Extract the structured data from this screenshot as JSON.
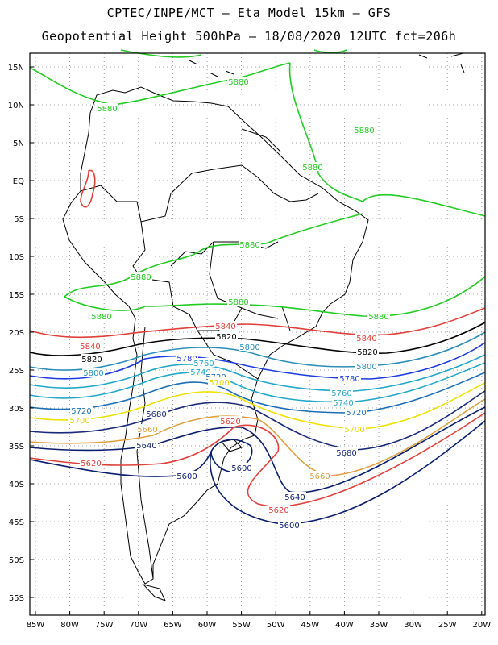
{
  "header": {
    "line1": "CPTEC/INPE/MCT –  Eta Model 15km – GFS",
    "line2": "Geopotential Height 500hPa – 18/08/2020 12UTC fct=206h"
  },
  "colors": {
    "c5880": "#22cc22",
    "c5840": "#e0403a",
    "c5820": "#000000",
    "c5800": "#2a8eb8",
    "c5780": "#1c3cde",
    "c5760": "#23a8c8",
    "c5740": "#23a8c8",
    "c5720": "#1a6fb6",
    "c5700": "#f0e000",
    "c5680": "#1a2a7a",
    "c5660": "#e0a040",
    "c5640": "#0a1e6e",
    "c5620": "#e0403a",
    "c5600": "#0a1e6e",
    "border": "#000000"
  },
  "axes": {
    "lat_labels": [
      "15N",
      "10N",
      "5N",
      "EQ",
      "5S",
      "10S",
      "15S",
      "20S",
      "25S",
      "30S",
      "35S",
      "40S",
      "45S",
      "50S",
      "55S"
    ],
    "lon_labels": [
      "85W",
      "80W",
      "75W",
      "70W",
      "65W",
      "60W",
      "55W",
      "50W",
      "45W",
      "40W",
      "35W",
      "30W",
      "25W",
      "20W"
    ]
  },
  "contour_labels": [
    {
      "text": "5880",
      "color": "#22cc22"
    },
    {
      "text": "5880",
      "color": "#22cc22"
    },
    {
      "text": "5880",
      "color": "#22cc22"
    },
    {
      "text": "5880",
      "color": "#22cc22"
    },
    {
      "text": "5880",
      "color": "#22cc22"
    },
    {
      "text": "5880",
      "color": "#22cc22"
    },
    {
      "text": "5880",
      "color": "#22cc22"
    },
    {
      "text": "5880",
      "color": "#22cc22"
    },
    {
      "text": "5880",
      "color": "#22cc22"
    },
    {
      "text": "5880",
      "color": "#22cc22"
    },
    {
      "text": "5840",
      "color": "#e0403a"
    },
    {
      "text": "5840",
      "color": "#e0403a"
    },
    {
      "text": "5840",
      "color": "#e0403a"
    },
    {
      "text": "5820",
      "color": "#000000"
    },
    {
      "text": "5820",
      "color": "#000000"
    },
    {
      "text": "5820",
      "color": "#000000"
    },
    {
      "text": "5800",
      "color": "#2a8eb8"
    },
    {
      "text": "5800",
      "color": "#2a8eb8"
    },
    {
      "text": "5800",
      "color": "#2a8eb8"
    },
    {
      "text": "5780",
      "color": "#1c3cde"
    },
    {
      "text": "5780",
      "color": "#1c3cde"
    },
    {
      "text": "5760",
      "color": "#23a8c8"
    },
    {
      "text": "5760",
      "color": "#23a8c8"
    },
    {
      "text": "5740",
      "color": "#23a8c8"
    },
    {
      "text": "5740",
      "color": "#23a8c8"
    },
    {
      "text": "5720",
      "color": "#1a6fb6"
    },
    {
      "text": "5720",
      "color": "#1a6fb6"
    },
    {
      "text": "5720",
      "color": "#1a6fb6"
    },
    {
      "text": "5700",
      "color": "#e8d800"
    },
    {
      "text": "5700",
      "color": "#e8d800"
    },
    {
      "text": "5700",
      "color": "#e8d800"
    },
    {
      "text": "5680",
      "color": "#1a2a7a"
    },
    {
      "text": "5680",
      "color": "#1a2a7a"
    },
    {
      "text": "5660",
      "color": "#e0a040"
    },
    {
      "text": "5660",
      "color": "#e0a040"
    },
    {
      "text": "5640",
      "color": "#0a1e6e"
    },
    {
      "text": "5640",
      "color": "#0a1e6e"
    },
    {
      "text": "5620",
      "color": "#e0403a"
    },
    {
      "text": "5620",
      "color": "#e0403a"
    },
    {
      "text": "5620",
      "color": "#e0403a"
    },
    {
      "text": "5600",
      "color": "#0a1e6e"
    },
    {
      "text": "5600",
      "color": "#0a1e6e"
    },
    {
      "text": "5600",
      "color": "#0a1e6e"
    }
  ]
}
